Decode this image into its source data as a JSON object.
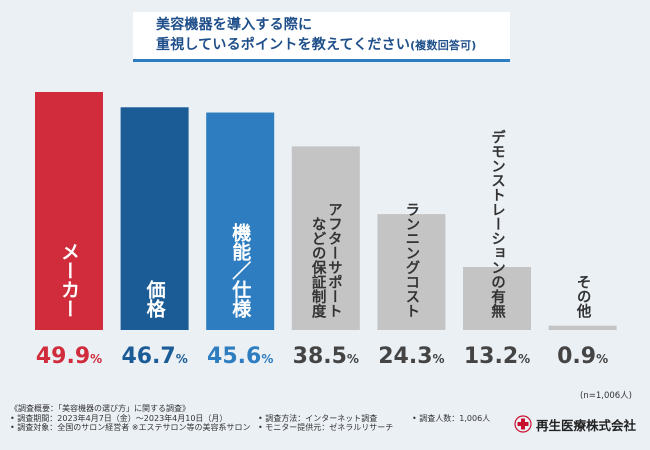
{
  "chart_data": {
    "type": "bar",
    "title_line1": "美容機器を導入する際に",
    "title_line2": "重視しているポイントを教えてください",
    "title_suffix": "(複数回答可)",
    "categories": [
      "メーカー",
      "価格",
      "機能／仕様",
      "アフターサポートなどの保証制度",
      "ランニングコスト",
      "デモンストレーションの有無",
      "その他"
    ],
    "category_lines": [
      [
        "メーカー"
      ],
      [
        "価格"
      ],
      [
        "機能／仕様"
      ],
      [
        "アフターサポート",
        "などの保証制度"
      ],
      [
        "ランニングコスト"
      ],
      [
        "デモンストレーションの有無"
      ],
      [
        "その他"
      ]
    ],
    "values": [
      49.9,
      46.7,
      45.6,
      38.5,
      24.3,
      13.2,
      0.9
    ],
    "value_labels": [
      {
        "num": "49.9",
        "pct": "%"
      },
      {
        "num": "46.7",
        "pct": "%"
      },
      {
        "num": "45.6",
        "pct": "%"
      },
      {
        "num": "38.5",
        "pct": "%"
      },
      {
        "num": "24.3",
        "pct": "%"
      },
      {
        "num": "13.2",
        "pct": "%"
      },
      {
        "num": "0.9",
        "pct": "%"
      }
    ],
    "colors": [
      "#d12c3c",
      "#1c5c96",
      "#2d7dc0",
      "#c4c4c4",
      "#c4c4c4",
      "#c4c4c4",
      "#c4c4c4"
    ],
    "value_colors": [
      "#d12c3c",
      "#1c5c96",
      "#2d7dc0",
      "#444444",
      "#444444",
      "#444444",
      "#444444"
    ],
    "label_colors": [
      "#ffffff",
      "#ffffff",
      "#ffffff",
      "#333333",
      "#333333",
      "#333333",
      "#333333"
    ],
    "ylim": [
      0,
      52
    ],
    "sample_size": "(n=1,006人)"
  },
  "survey": {
    "overview": "《調査概要：「美容機器の選び方」に関する調査》",
    "period": "• 調査期間：2023年4月7日（金）～2023年4月10日（月）",
    "method": "• 調査方法：インターネット調査",
    "count": "• 調査人数：1,006人",
    "target": "• 調査対象：全国のサロン経営者 ※エステサロン等の美容系サロン",
    "monitor": "• モニター提供元：ゼネラルリサーチ"
  },
  "logo": {
    "name": "再生医療株式会社",
    "accent": "#c8102e"
  }
}
